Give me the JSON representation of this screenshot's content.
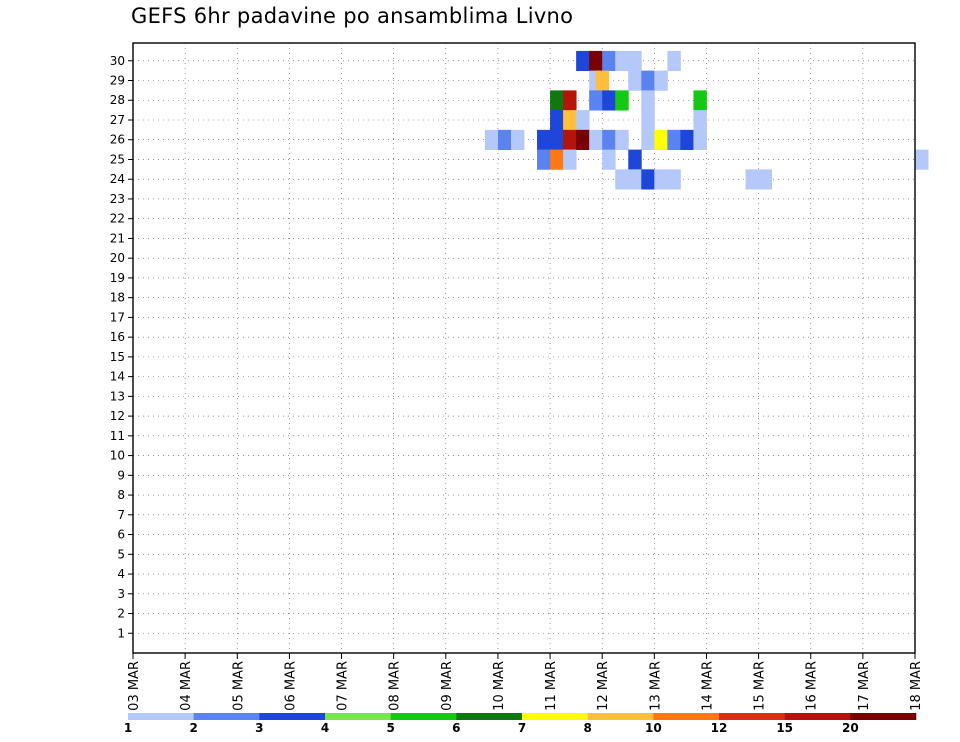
{
  "chart_data": {
    "type": "heatmap",
    "title": "GEFS 6hr padavine po ansamblima Livno",
    "xlabel": "",
    "ylabel": "",
    "x_tick_labels": [
      "03 MAR",
      "04 MAR",
      "05 MAR",
      "06 MAR",
      "07 MAR",
      "08 MAR",
      "09 MAR",
      "10 MAR",
      "11 MAR",
      "12 MAR",
      "13 MAR",
      "14 MAR",
      "15 MAR",
      "16 MAR",
      "17 MAR",
      "18 MAR"
    ],
    "y_tick_labels": [
      "1",
      "2",
      "3",
      "4",
      "5",
      "6",
      "7",
      "8",
      "9",
      "10",
      "11",
      "12",
      "13",
      "14",
      "15",
      "16",
      "17",
      "18",
      "19",
      "20",
      "21",
      "22",
      "23",
      "24",
      "25",
      "26",
      "27",
      "28",
      "29",
      "30"
    ],
    "ylim": [
      0,
      30
    ],
    "time_step_hours": 6,
    "grid": "dotted",
    "legend_position": "bottom colorbar",
    "colorbar": {
      "levels": [
        1,
        2,
        3,
        4,
        5,
        6,
        7,
        8,
        10,
        12,
        15,
        20
      ],
      "labels": [
        "1",
        "2",
        "3",
        "4",
        "5",
        "6",
        "7",
        "8",
        "10",
        "12",
        "15",
        "20"
      ],
      "colors": [
        "#b4c8fa",
        "#5a82f0",
        "#1e46d8",
        "#78e650",
        "#14c814",
        "#107810",
        "#ffff00",
        "#ffbe3c",
        "#ff7814",
        "#e02c14",
        "#b4140a",
        "#780000"
      ]
    },
    "cells": [
      {
        "member": 30,
        "date": "11 MAR 12Z",
        "class": 2
      },
      {
        "member": 30,
        "date": "11 MAR 18Z",
        "class": 11
      },
      {
        "member": 30,
        "date": "12 MAR 00Z",
        "class": 1
      },
      {
        "member": 30,
        "date": "12 MAR 06Z",
        "class": 0
      },
      {
        "member": 30,
        "date": "12 MAR 12Z",
        "class": 0
      },
      {
        "member": 30,
        "date": "13 MAR 06Z",
        "class": 0
      },
      {
        "member": 29,
        "date": "11 MAR 18Z",
        "class": 0
      },
      {
        "member": 29,
        "date": "11 MAR 18Z+",
        "class": 7
      },
      {
        "member": 29,
        "date": "12 MAR 12Z",
        "class": 0
      },
      {
        "member": 29,
        "date": "12 MAR 18Z",
        "class": 1
      },
      {
        "member": 29,
        "date": "13 MAR 00Z",
        "class": 0
      },
      {
        "member": 28,
        "date": "11 MAR 00Z",
        "class": 5
      },
      {
        "member": 28,
        "date": "11 MAR 06Z",
        "class": 10
      },
      {
        "member": 28,
        "date": "11 MAR 18Z",
        "class": 1
      },
      {
        "member": 28,
        "date": "12 MAR 00Z",
        "class": 2
      },
      {
        "member": 28,
        "date": "12 MAR 06Z",
        "class": 4
      },
      {
        "member": 28,
        "date": "12 MAR 18Z",
        "class": 0
      },
      {
        "member": 28,
        "date": "13 MAR 18Z",
        "class": 4
      },
      {
        "member": 27,
        "date": "11 MAR 00Z",
        "class": 2
      },
      {
        "member": 27,
        "date": "11 MAR 06Z",
        "class": 7
      },
      {
        "member": 27,
        "date": "11 MAR 12Z",
        "class": 0
      },
      {
        "member": 27,
        "date": "12 MAR 18Z",
        "class": 0
      },
      {
        "member": 27,
        "date": "13 MAR 18Z",
        "class": 0
      },
      {
        "member": 26,
        "date": "09 MAR 18Z",
        "class": 0
      },
      {
        "member": 26,
        "date": "10 MAR 00Z",
        "class": 1
      },
      {
        "member": 26,
        "date": "10 MAR 06Z",
        "class": 0
      },
      {
        "member": 26,
        "date": "10 MAR 18Z",
        "class": 2
      },
      {
        "member": 26,
        "date": "11 MAR 00Z",
        "class": 2
      },
      {
        "member": 26,
        "date": "11 MAR 06Z",
        "class": 10
      },
      {
        "member": 26,
        "date": "11 MAR 12Z",
        "class": 11
      },
      {
        "member": 26,
        "date": "11 MAR 18Z",
        "class": 0
      },
      {
        "member": 26,
        "date": "12 MAR 00Z",
        "class": 1
      },
      {
        "member": 26,
        "date": "12 MAR 06Z",
        "class": 0
      },
      {
        "member": 26,
        "date": "12 MAR 18Z",
        "class": 0
      },
      {
        "member": 26,
        "date": "13 MAR 00Z",
        "class": 6
      },
      {
        "member": 26,
        "date": "13 MAR 06Z",
        "class": 1
      },
      {
        "member": 26,
        "date": "13 MAR 12Z",
        "class": 2
      },
      {
        "member": 26,
        "date": "13 MAR 18Z",
        "class": 0
      },
      {
        "member": 25,
        "date": "10 MAR 18Z",
        "class": 1
      },
      {
        "member": 25,
        "date": "11 MAR 00Z",
        "class": 8
      },
      {
        "member": 25,
        "date": "11 MAR 06Z",
        "class": 0
      },
      {
        "member": 25,
        "date": "12 MAR 00Z",
        "class": 0
      },
      {
        "member": 25,
        "date": "12 MAR 12Z",
        "class": 2
      },
      {
        "member": 25,
        "date": "18 MAR 00Z",
        "class": 0
      },
      {
        "member": 24,
        "date": "12 MAR 06Z",
        "class": 0
      },
      {
        "member": 24,
        "date": "12 MAR 12Z",
        "class": 0
      },
      {
        "member": 24,
        "date": "12 MAR 18Z",
        "class": 2
      },
      {
        "member": 24,
        "date": "13 MAR 00Z",
        "class": 0
      },
      {
        "member": 24,
        "date": "13 MAR 06Z",
        "class": 0
      },
      {
        "member": 24,
        "date": "14 MAR 18Z",
        "class": 0
      },
      {
        "member": 24,
        "date": "15 MAR 00Z",
        "class": 0
      }
    ]
  }
}
